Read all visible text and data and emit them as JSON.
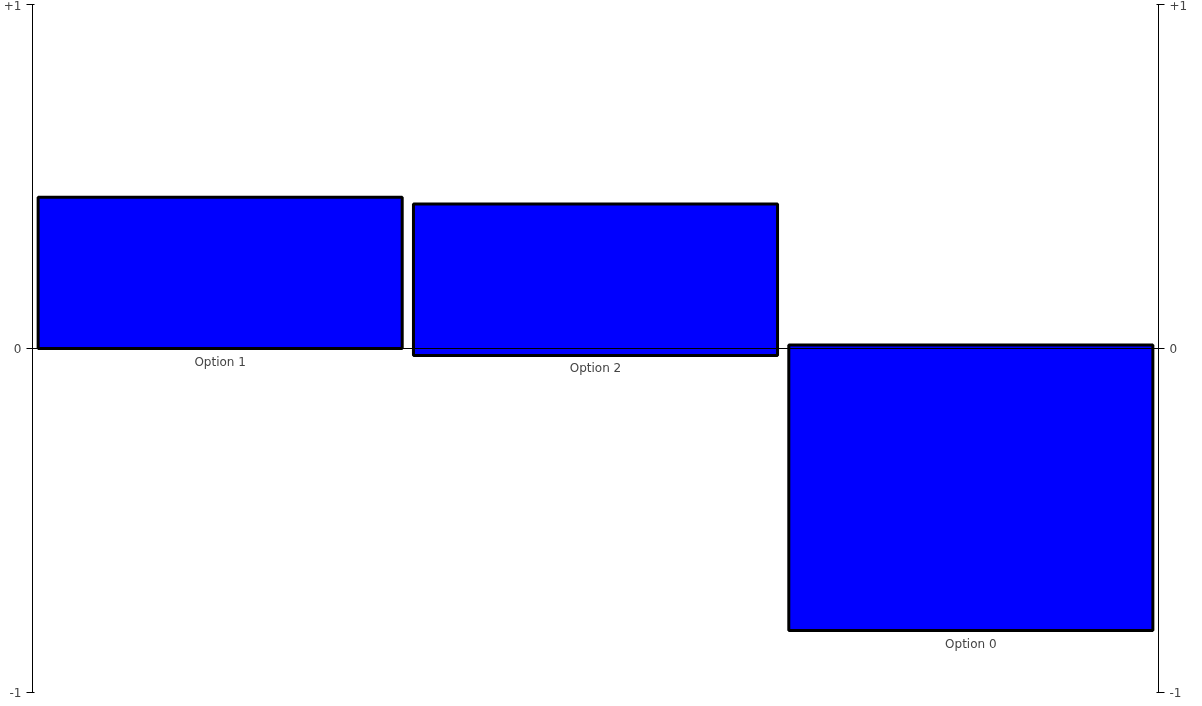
{
  "chart_data": {
    "type": "bar",
    "categories": [
      "Option 1",
      "Option 2",
      "Option 0"
    ],
    "values": [
      0.44,
      0.44,
      -0.83
    ],
    "base": [
      0,
      -0.02,
      0.01
    ],
    "color": "#0000ff",
    "ylim": [
      -1,
      1
    ],
    "yticks": [
      {
        "value": 1,
        "label": "+1"
      },
      0,
      -1
    ],
    "y2lim": [
      -1,
      1
    ],
    "y2ticks": [
      {
        "value": 1,
        "label": "+1"
      },
      0,
      -1
    ],
    "ref_lines": [
      {
        "axis": "y",
        "value": 0,
        "label": null,
        "color": "#000000"
      }
    ],
    "grid": false
  }
}
